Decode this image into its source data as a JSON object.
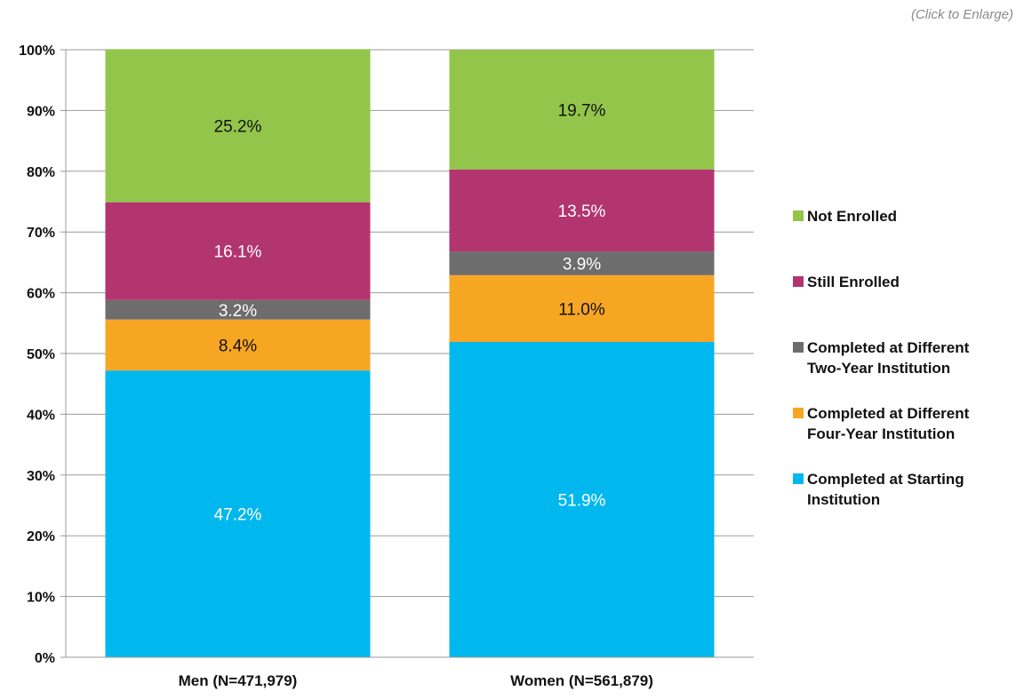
{
  "enlarge_link": "(Click to Enlarge)",
  "chart_data": {
    "type": "bar",
    "stacked": true,
    "categories": [
      "Men (N=471,979)",
      "Women (N=561,879)"
    ],
    "series": [
      {
        "name": "Completed at Starting Institution",
        "values": [
          47.2,
          51.9
        ],
        "color": "#00b8ee",
        "label_color": "#ffffff"
      },
      {
        "name": "Completed at Different Four-Year Institution",
        "values": [
          8.4,
          11.0
        ],
        "color": "#f7a623",
        "label_color": "#111111"
      },
      {
        "name": "Completed at Different Two-Year Institution",
        "values": [
          3.2,
          3.9
        ],
        "color": "#6d6d6d",
        "label_color": "#ffffff"
      },
      {
        "name": "Still Enrolled",
        "values": [
          16.1,
          13.5
        ],
        "color": "#b2356f",
        "label_color": "#ffffff"
      },
      {
        "name": "Not Enrolled",
        "values": [
          25.2,
          19.7
        ],
        "color": "#93c54b",
        "label_color": "#111111"
      }
    ],
    "legend_order": [
      "Not Enrolled",
      "Still Enrolled",
      "Completed at Different Two-Year Institution",
      "Completed at Different Four-Year Institution",
      "Completed at Starting Institution"
    ],
    "legend_lines": [
      [
        "Not Enrolled"
      ],
      [
        "Still Enrolled"
      ],
      [
        "Completed at Different",
        "Two-Year Institution"
      ],
      [
        "Completed at Different",
        "Four-Year Institution"
      ],
      [
        "Completed at Starting",
        "Institution"
      ]
    ],
    "yticks": [
      "0%",
      "10%",
      "20%",
      "30%",
      "40%",
      "50%",
      "60%",
      "70%",
      "80%",
      "90%",
      "100%"
    ],
    "ylim": [
      0,
      100
    ],
    "grid": true,
    "legend_position": "right",
    "title": "",
    "xlabel": "",
    "ylabel": ""
  }
}
